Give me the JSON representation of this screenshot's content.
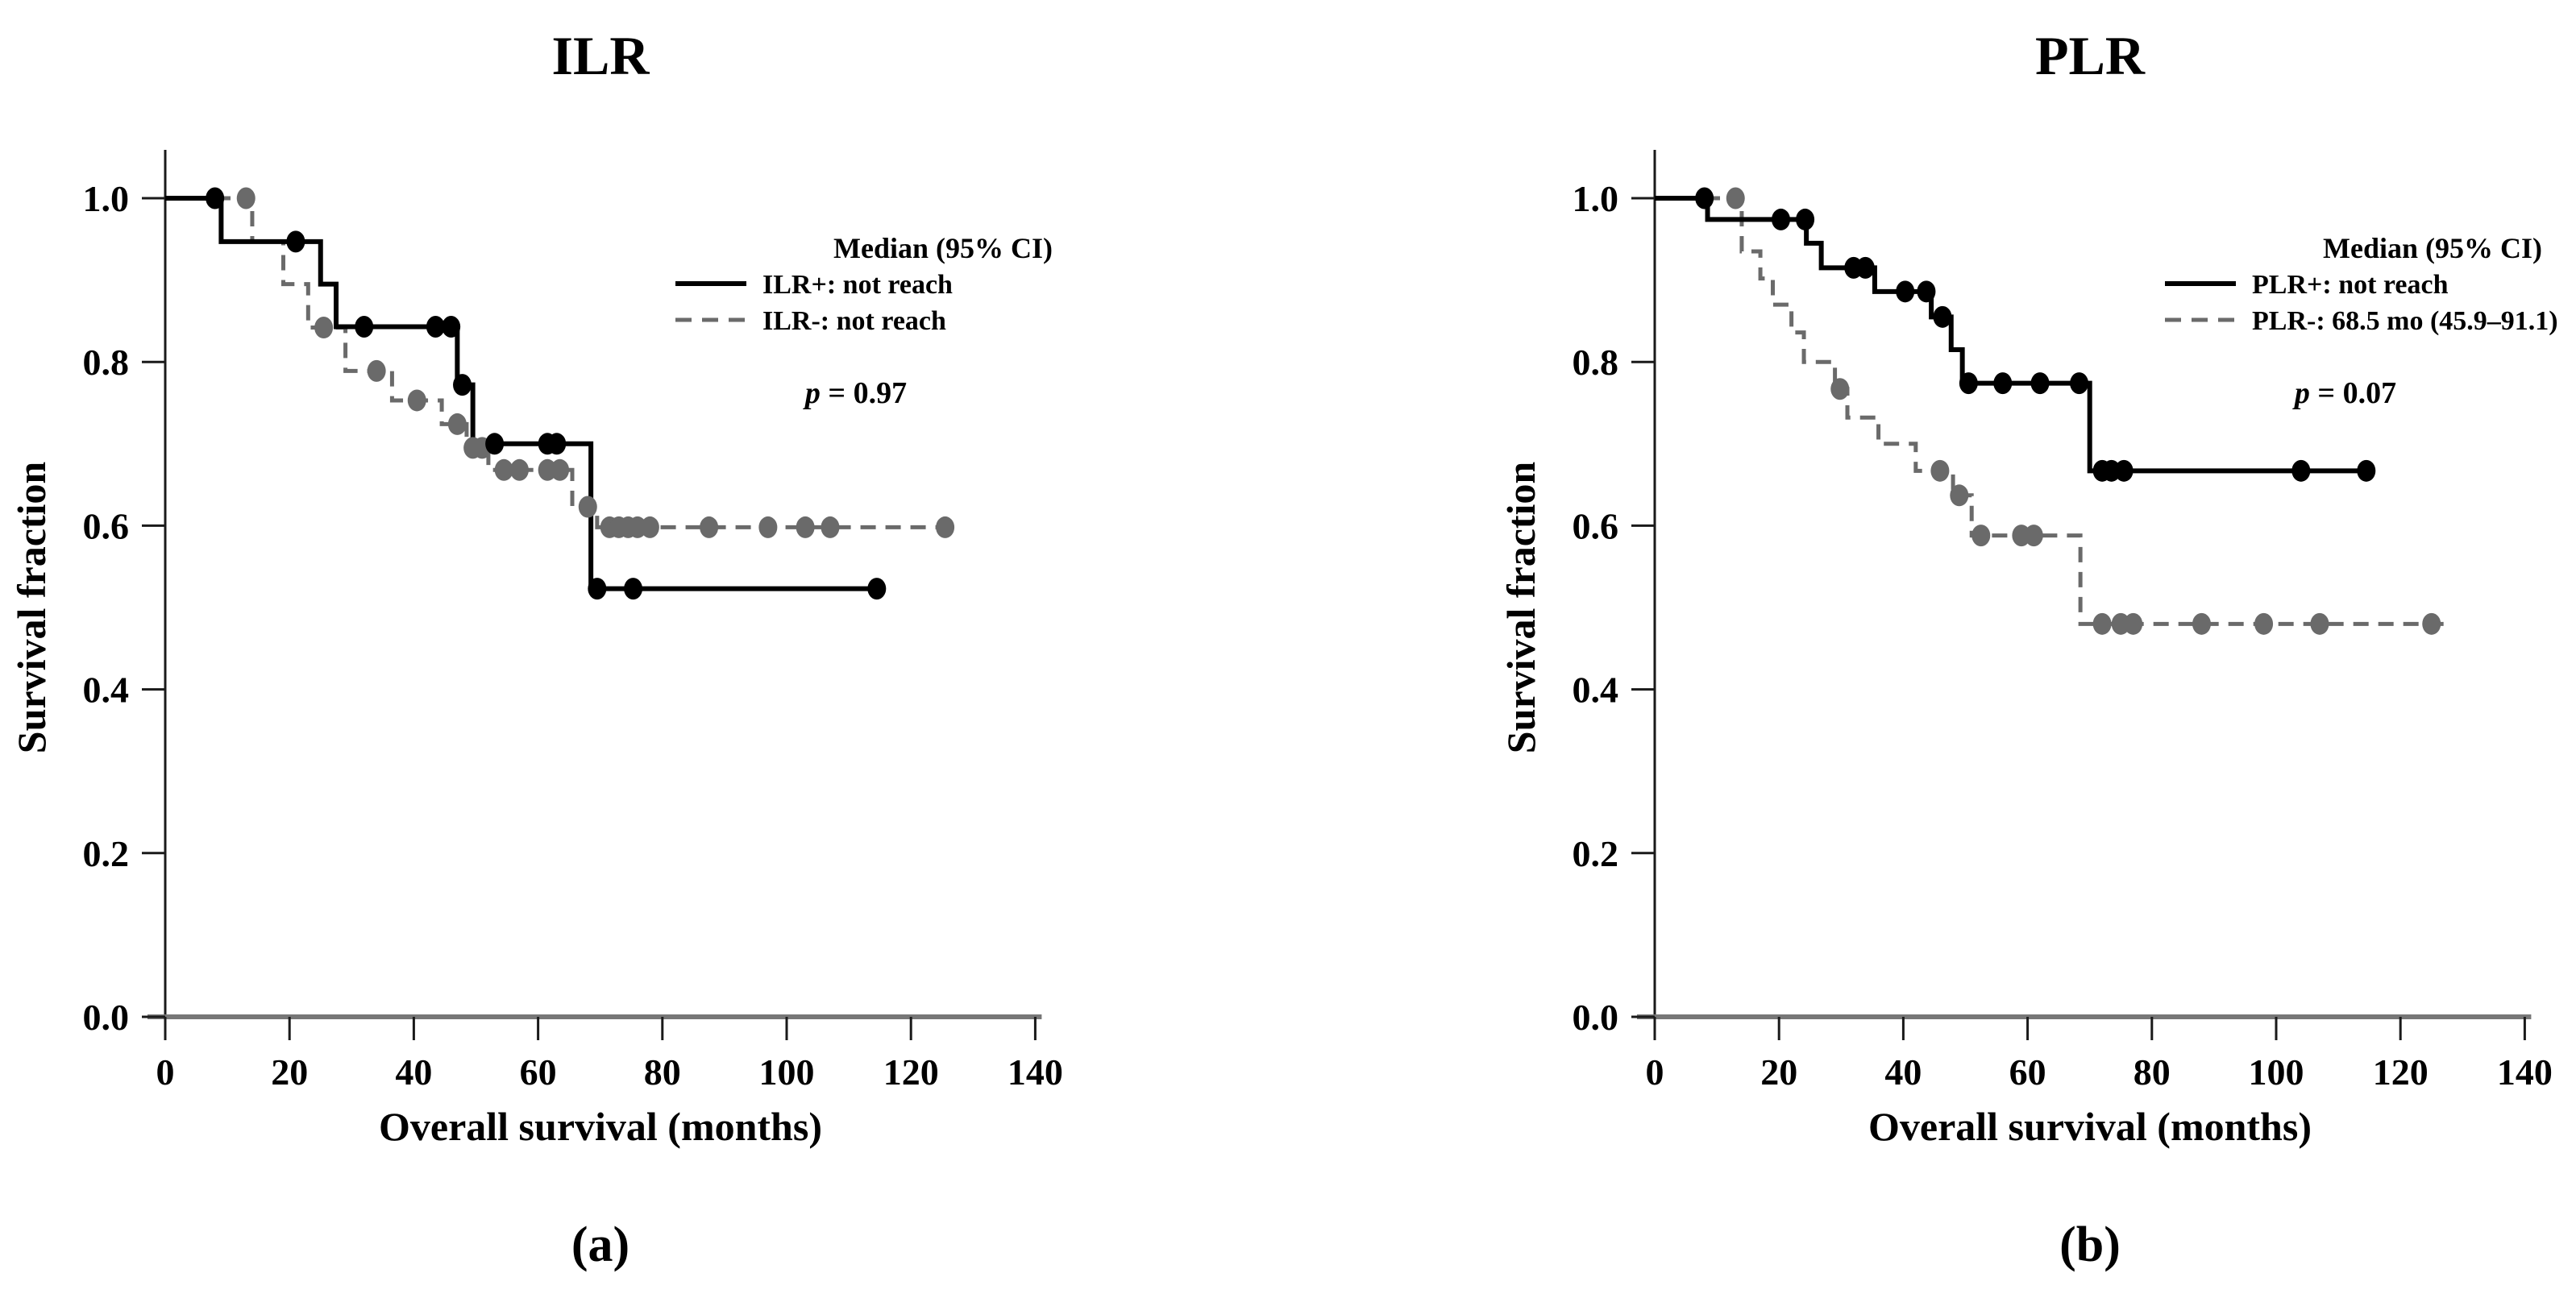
{
  "figure": {
    "panels": [
      {
        "id": "panel-a",
        "title": "ILR",
        "caption": "(a)",
        "y_axis": {
          "label": "Survival fraction",
          "ticks": [
            "1.0",
            "0.8",
            "0.6",
            "0.4",
            "0.2",
            "0.0"
          ]
        },
        "x_axis": {
          "label": "Overall survival (months)",
          "ticks": [
            "0",
            "20",
            "40",
            "60",
            "80",
            "100",
            "120",
            "140"
          ]
        },
        "legend": {
          "header": "Median (95% CI)",
          "entries": [
            {
              "style": "solid",
              "label": "ILR+: not reach"
            },
            {
              "style": "dashed",
              "label": "ILR-: not reach"
            }
          ],
          "p_italic": "p",
          "p_rest": " = 0.97"
        }
      },
      {
        "id": "panel-b",
        "title": "PLR",
        "caption": "(b)",
        "y_axis": {
          "label": "Survival fraction",
          "ticks": [
            "1.0",
            "0.8",
            "0.6",
            "0.4",
            "0.2",
            "0.0"
          ]
        },
        "x_axis": {
          "label": "Overall survival (months)",
          "ticks": [
            "0",
            "20",
            "40",
            "60",
            "80",
            "100",
            "120",
            "140"
          ]
        },
        "legend": {
          "header": "Median (95% CI)",
          "entries": [
            {
              "style": "solid",
              "label": "PLR+: not reach"
            },
            {
              "style": "dashed",
              "label": "PLR-: 68.5 mo (45.9–91.1)"
            }
          ],
          "p_italic": "p",
          "p_rest": " = 0.07"
        }
      }
    ],
    "colors": {
      "solid": "#000000",
      "dashed": "#6a6a6a",
      "axis": "#1a1a1a",
      "baseline": "#777777"
    }
  },
  "chart_data": [
    {
      "type": "line",
      "subtype": "kaplan-meier-step",
      "title": "ILR",
      "xlabel": "Overall survival (months)",
      "ylabel": "Survival fraction",
      "xlim": [
        0,
        140
      ],
      "ylim": [
        0.0,
        1.0
      ],
      "x_ticks": [
        0,
        20,
        40,
        60,
        80,
        100,
        120,
        140
      ],
      "y_ticks": [
        1.0,
        0.8,
        0.6,
        0.4,
        0.2,
        0.0
      ],
      "legend_position": "top-right",
      "series": [
        {
          "name": "ILR+",
          "median": "not reach",
          "style": "solid",
          "color": "#000000",
          "start_level": 1.0,
          "steps": [
            [
              9,
              0.947
            ],
            [
              25,
              0.895
            ],
            [
              27.5,
              0.843
            ],
            [
              47,
              0.772
            ],
            [
              49.5,
              0.7
            ],
            [
              68.5,
              0.523
            ]
          ],
          "end_time": 115.5,
          "censors": [
            [
              8,
              1.0
            ],
            [
              21,
              0.947
            ],
            [
              32,
              0.843
            ],
            [
              43.5,
              0.843
            ],
            [
              46,
              0.843
            ],
            [
              47.8,
              0.772
            ],
            [
              53,
              0.7
            ],
            [
              61.5,
              0.7
            ],
            [
              63,
              0.7
            ],
            [
              69.5,
              0.523
            ],
            [
              75.3,
              0.523
            ],
            [
              114.5,
              0.523
            ]
          ]
        },
        {
          "name": "ILR-",
          "median": "not reach",
          "style": "dashed",
          "color": "#6a6a6a",
          "start_level": 1.0,
          "steps": [
            [
              14,
              0.947
            ],
            [
              19,
              0.895
            ],
            [
              23,
              0.842
            ],
            [
              29,
              0.789
            ],
            [
              36.5,
              0.753
            ],
            [
              44.5,
              0.724
            ],
            [
              48.5,
              0.695
            ],
            [
              52,
              0.668
            ],
            [
              65.5,
              0.623
            ],
            [
              69.5,
              0.598
            ]
          ],
          "end_time": 127,
          "censors": [
            [
              13,
              1.0
            ],
            [
              25.5,
              0.842
            ],
            [
              34,
              0.789
            ],
            [
              40.5,
              0.753
            ],
            [
              47,
              0.724
            ],
            [
              49.5,
              0.695
            ],
            [
              51,
              0.695
            ],
            [
              54.5,
              0.668
            ],
            [
              57,
              0.668
            ],
            [
              61.5,
              0.668
            ],
            [
              63.5,
              0.668
            ],
            [
              68,
              0.623
            ],
            [
              71.5,
              0.598
            ],
            [
              73,
              0.598
            ],
            [
              74.5,
              0.598
            ],
            [
              76,
              0.598
            ],
            [
              78,
              0.598
            ],
            [
              87.5,
              0.598
            ],
            [
              97,
              0.598
            ],
            [
              103,
              0.598
            ],
            [
              107,
              0.598
            ],
            [
              125.5,
              0.598
            ]
          ]
        }
      ],
      "p_value": "p = 0.97"
    },
    {
      "type": "line",
      "subtype": "kaplan-meier-step",
      "title": "PLR",
      "xlabel": "Overall survival (months)",
      "ylabel": "Survival fraction",
      "xlim": [
        0,
        140
      ],
      "ylim": [
        0.0,
        1.0
      ],
      "x_ticks": [
        0,
        20,
        40,
        60,
        80,
        100,
        120,
        140
      ],
      "y_ticks": [
        1.0,
        0.8,
        0.6,
        0.4,
        0.2,
        0.0
      ],
      "legend_position": "top-right",
      "series": [
        {
          "name": "PLR+",
          "median": "not reach",
          "style": "solid",
          "color": "#000000",
          "start_level": 1.0,
          "steps": [
            [
              8.5,
              0.974
            ],
            [
              24.4,
              0.945
            ],
            [
              26.8,
              0.915
            ],
            [
              35.4,
              0.886
            ],
            [
              44.5,
              0.855
            ],
            [
              47.7,
              0.815
            ],
            [
              49.5,
              0.774
            ],
            [
              70,
              0.667
            ]
          ],
          "end_time": 115.5,
          "censors": [
            [
              8,
              1.0
            ],
            [
              20.3,
              0.974
            ],
            [
              24.2,
              0.974
            ],
            [
              32,
              0.915
            ],
            [
              33.9,
              0.915
            ],
            [
              40.3,
              0.886
            ],
            [
              43.7,
              0.886
            ],
            [
              46.3,
              0.855
            ],
            [
              50.5,
              0.774
            ],
            [
              56,
              0.774
            ],
            [
              62,
              0.774
            ],
            [
              68.3,
              0.774
            ],
            [
              72,
              0.667
            ],
            [
              73.5,
              0.667
            ],
            [
              75.5,
              0.667
            ],
            [
              104,
              0.667
            ],
            [
              114.5,
              0.667
            ]
          ]
        },
        {
          "name": "PLR-",
          "median": "68.5 mo (45.9-91.1)",
          "style": "dashed",
          "color": "#6a6a6a",
          "start_level": 1.0,
          "steps": [
            [
              14,
              0.935
            ],
            [
              17,
              0.902
            ],
            [
              19,
              0.87
            ],
            [
              22,
              0.836
            ],
            [
              24,
              0.8
            ],
            [
              29,
              0.767
            ],
            [
              31,
              0.732
            ],
            [
              36,
              0.7
            ],
            [
              42,
              0.667
            ],
            [
              48,
              0.637
            ],
            [
              51,
              0.588
            ],
            [
              68.5,
              0.48
            ]
          ],
          "end_time": 127,
          "censors": [
            [
              13,
              1.0
            ],
            [
              29.8,
              0.767
            ],
            [
              45.9,
              0.667
            ],
            [
              49,
              0.637
            ],
            [
              52.5,
              0.588
            ],
            [
              59,
              0.588
            ],
            [
              61,
              0.588
            ],
            [
              72,
              0.48
            ],
            [
              75,
              0.48
            ],
            [
              77,
              0.48
            ],
            [
              88,
              0.48
            ],
            [
              98,
              0.48
            ],
            [
              107,
              0.48
            ],
            [
              125,
              0.48
            ]
          ]
        }
      ],
      "p_value": "p = 0.07"
    }
  ]
}
